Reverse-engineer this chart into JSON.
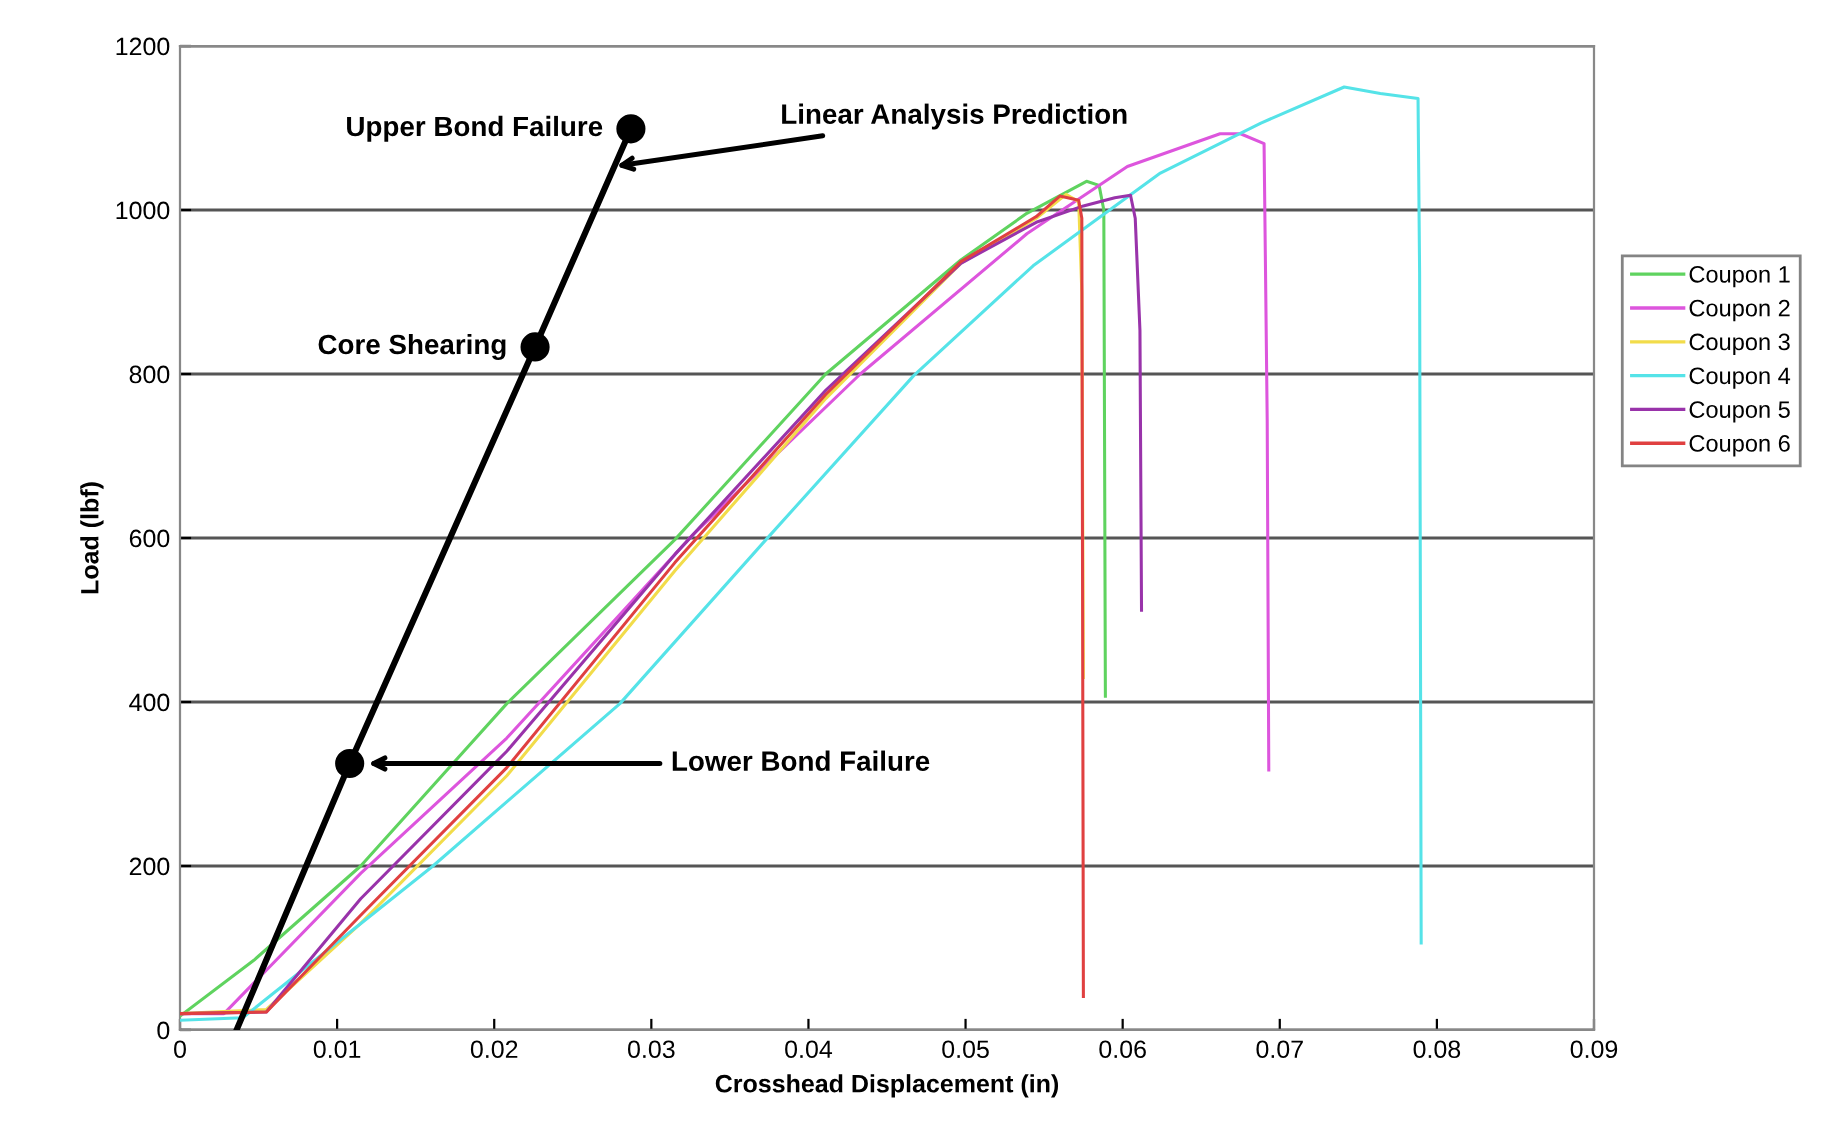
{
  "chart_data": {
    "type": "line",
    "xlabel": "Crosshead Displacement (in)",
    "ylabel": "Load (lbf)",
    "xlim": [
      0,
      0.09
    ],
    "xticks": [
      0,
      0.01,
      0.02,
      0.03,
      0.04,
      0.05,
      0.06,
      0.07,
      0.08,
      0.09
    ],
    "ylim": [
      0,
      1200
    ],
    "yticks": [
      0,
      200,
      400,
      600,
      800,
      1000,
      1200
    ],
    "grid": "y",
    "legend": "right",
    "series": [
      {
        "name": "Coupon 1",
        "color": "#5fd35f",
        "x": [
          0,
          0.0047,
          0.0115,
          0.0208,
          0.0315,
          0.0411,
          0.0497,
          0.0539,
          0.0577,
          0.0585,
          0.0588,
          0.0589
        ],
        "values": [
          17,
          85,
          200,
          398,
          598,
          800,
          939,
          996,
          1035,
          1030,
          1000,
          407
        ]
      },
      {
        "name": "Coupon 2",
        "color": "#dd55dd",
        "x": [
          0,
          0.0028,
          0.0115,
          0.0208,
          0.0327,
          0.0433,
          0.0539,
          0.0603,
          0.0662,
          0.0675,
          0.069,
          0.0692,
          0.0693
        ],
        "values": [
          20,
          20,
          191,
          356,
          605,
          800,
          971,
          1053,
          1093,
          1093,
          1081,
          744,
          317
        ]
      },
      {
        "name": "Coupon 3",
        "color": "#f2dc4a",
        "x": [
          0,
          0.0055,
          0.0115,
          0.0208,
          0.0315,
          0.0411,
          0.0497,
          0.0545,
          0.0564,
          0.0572,
          0.0574,
          0.0575
        ],
        "values": [
          20,
          25,
          130,
          310,
          560,
          770,
          935,
          990,
          1019,
          1010,
          900,
          430
        ]
      },
      {
        "name": "Coupon 4",
        "color": "#55e3e8",
        "x": [
          0,
          0.004,
          0.0161,
          0.028,
          0.0373,
          0.0467,
          0.0543,
          0.0624,
          0.0688,
          0.0741,
          0.0764,
          0.0788,
          0.0789,
          0.079
        ],
        "values": [
          12,
          15,
          200,
          398,
          598,
          798,
          932,
          1045,
          1106,
          1150,
          1142,
          1136,
          923,
          106
        ]
      },
      {
        "name": "Coupon 5",
        "color": "#9933aa",
        "x": [
          0,
          0.0055,
          0.0115,
          0.0208,
          0.0315,
          0.0411,
          0.0497,
          0.0545,
          0.0575,
          0.0595,
          0.0605,
          0.0608,
          0.0611,
          0.0612
        ],
        "values": [
          20,
          22,
          160,
          340,
          580,
          780,
          935,
          985,
          1005,
          1015,
          1018,
          990,
          853,
          512
        ]
      },
      {
        "name": "Coupon 6",
        "color": "#e04040",
        "x": [
          0,
          0.0055,
          0.0115,
          0.0208,
          0.0315,
          0.0411,
          0.0497,
          0.0545,
          0.056,
          0.0572,
          0.0574,
          0.0575
        ],
        "values": [
          20,
          22,
          140,
          320,
          570,
          775,
          937,
          992,
          1017,
          1012,
          990,
          41
        ]
      },
      {
        "type": "line",
        "color": "#000000",
        "marker": "none",
        "x": [
          0.0036,
          0.0108,
          0.0226,
          0.0287
        ],
        "values": [
          0,
          325,
          833,
          1099
        ]
      },
      {
        "type": "scatter",
        "color": "#000000",
        "marker": "circle",
        "x": [
          0.0108,
          0.0226,
          0.0287
        ],
        "values": [
          325,
          833,
          1099
        ]
      }
    ],
    "annotations": [
      {
        "text": "Upper Bond Failure",
        "x": 0.0287,
        "y": 1099
      },
      {
        "text": "Linear Analysis Prediction",
        "x": 0.0276,
        "y": 1053
      },
      {
        "text": "Core Shearing",
        "x": 0.0226,
        "y": 833
      },
      {
        "text": "Lower Bond Failure",
        "x": 0.0118,
        "y": 325
      }
    ]
  }
}
